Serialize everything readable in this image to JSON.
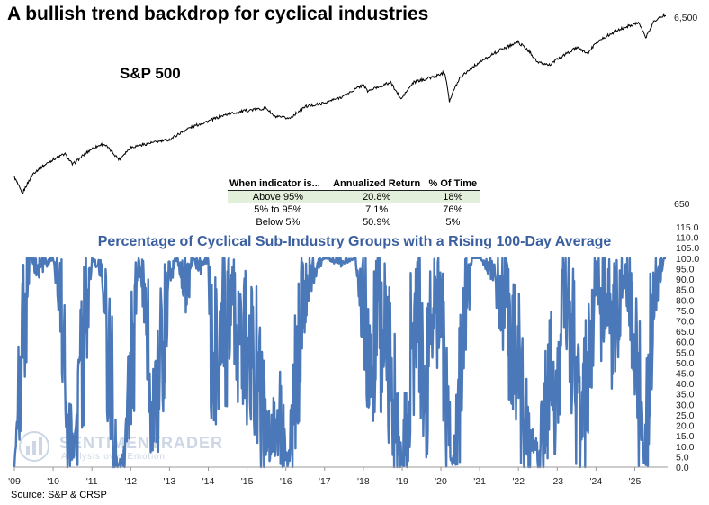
{
  "title": "A bullish trend backdrop for cyclical industries",
  "source": "Source: S&P & CRSP",
  "watermark": {
    "brand": "SENTIMENTRADER",
    "tagline": "Analysis over Emotion"
  },
  "stats_table": {
    "headers": [
      "When indicator is...",
      "Annualized Return",
      "% Of Time"
    ],
    "rows": [
      {
        "cond": "Above 95%",
        "ret": "20.8%",
        "time": "18%",
        "highlight": true
      },
      {
        "cond": "5% to 95%",
        "ret": "7.1%",
        "time": "76%",
        "highlight": false
      },
      {
        "cond": "Below 5%",
        "ret": "50.9%",
        "time": "5%",
        "highlight": false
      }
    ]
  },
  "colors": {
    "spx_line": "#000000",
    "indicator_line": "#4a78b8",
    "title_blue": "#3a5fa0",
    "highlight": "#e2efda"
  },
  "chart_data": [
    {
      "type": "line",
      "title": "S&P 500",
      "scale": "log",
      "ylim": [
        650,
        6500
      ],
      "yticks": [
        "6,500",
        "650"
      ],
      "x": [
        2009.0,
        2009.2,
        2009.5,
        2010.0,
        2010.3,
        2010.5,
        2011.0,
        2011.3,
        2011.7,
        2012.0,
        2012.5,
        2013.0,
        2013.5,
        2014.0,
        2014.5,
        2015.0,
        2015.5,
        2015.7,
        2016.1,
        2016.5,
        2017.0,
        2017.5,
        2018.0,
        2018.1,
        2018.7,
        2018.97,
        2019.3,
        2019.9,
        2020.1,
        2020.22,
        2020.5,
        2020.9,
        2021.5,
        2021.99,
        2022.3,
        2022.5,
        2022.8,
        2023.0,
        2023.5,
        2023.8,
        2024.0,
        2024.5,
        2024.9,
        2025.1,
        2025.28,
        2025.5,
        2025.75
      ],
      "values": [
        900,
        730,
        950,
        1120,
        1200,
        1050,
        1280,
        1360,
        1120,
        1300,
        1370,
        1430,
        1650,
        1800,
        1960,
        2050,
        2110,
        1900,
        1860,
        2150,
        2250,
        2450,
        2820,
        2600,
        2900,
        2350,
        2900,
        3150,
        3300,
        2300,
        3100,
        3600,
        4300,
        4780,
        4200,
        3700,
        3600,
        3850,
        4450,
        4150,
        4750,
        5450,
        5900,
        6100,
        5000,
        6200,
        6650
      ]
    },
    {
      "type": "line",
      "title": "Percentage of Cyclical Sub-Industry Groups with a Rising 100-Day Average",
      "ylim": [
        0,
        115
      ],
      "yticks": [
        "0.0",
        "5.0",
        "10.0",
        "15.0",
        "20.0",
        "25.0",
        "30.0",
        "35.0",
        "40.0",
        "45.0",
        "50.0",
        "55.0",
        "60.0",
        "65.0",
        "70.0",
        "75.0",
        "80.0",
        "85.0",
        "90.0",
        "95.0",
        "100.0",
        "105.0",
        "110.0",
        "115.0"
      ],
      "xticks": [
        "'09",
        "'10",
        "'11",
        "'12",
        "'13",
        "'14",
        "'15",
        "'16",
        "'17",
        "'18",
        "'19",
        "'20",
        "'21",
        "'22",
        "'23",
        "'24",
        "'25"
      ],
      "x": [
        2009.0,
        2009.2,
        2009.4,
        2009.6,
        2010.0,
        2010.2,
        2010.4,
        2010.55,
        2010.8,
        2011.0,
        2011.25,
        2011.5,
        2011.65,
        2011.85,
        2012.0,
        2012.2,
        2012.4,
        2012.6,
        2012.8,
        2013.0,
        2013.2,
        2013.45,
        2013.6,
        2013.8,
        2014.0,
        2014.1,
        2014.3,
        2014.5,
        2014.6,
        2014.8,
        2015.0,
        2015.3,
        2015.6,
        2015.85,
        2016.05,
        2016.25,
        2016.5,
        2016.75,
        2017.0,
        2017.4,
        2017.8,
        2018.0,
        2018.2,
        2018.5,
        2018.75,
        2019.0,
        2019.2,
        2019.4,
        2019.6,
        2019.8,
        2020.0,
        2020.15,
        2020.3,
        2020.5,
        2020.8,
        2021.0,
        2021.3,
        2021.6,
        2021.8,
        2022.0,
        2022.2,
        2022.5,
        2022.75,
        2023.0,
        2023.2,
        2023.4,
        2023.6,
        2023.8,
        2024.0,
        2024.15,
        2024.3,
        2024.5,
        2024.7,
        2024.9,
        2025.1,
        2025.25,
        2025.35,
        2025.5,
        2025.75
      ],
      "values": [
        0,
        50,
        100,
        95,
        100,
        80,
        20,
        5,
        60,
        100,
        95,
        40,
        0,
        5,
        40,
        100,
        80,
        20,
        60,
        90,
        100,
        85,
        100,
        95,
        100,
        45,
        70,
        65,
        90,
        55,
        60,
        45,
        10,
        25,
        0,
        40,
        85,
        95,
        100,
        98,
        100,
        75,
        60,
        65,
        40,
        0,
        50,
        80,
        30,
        70,
        80,
        30,
        0,
        40,
        100,
        100,
        95,
        80,
        60,
        45,
        20,
        5,
        30,
        50,
        80,
        60,
        15,
        45,
        90,
        75,
        85,
        60,
        95,
        80,
        40,
        0,
        45,
        85,
        100
      ]
    }
  ]
}
